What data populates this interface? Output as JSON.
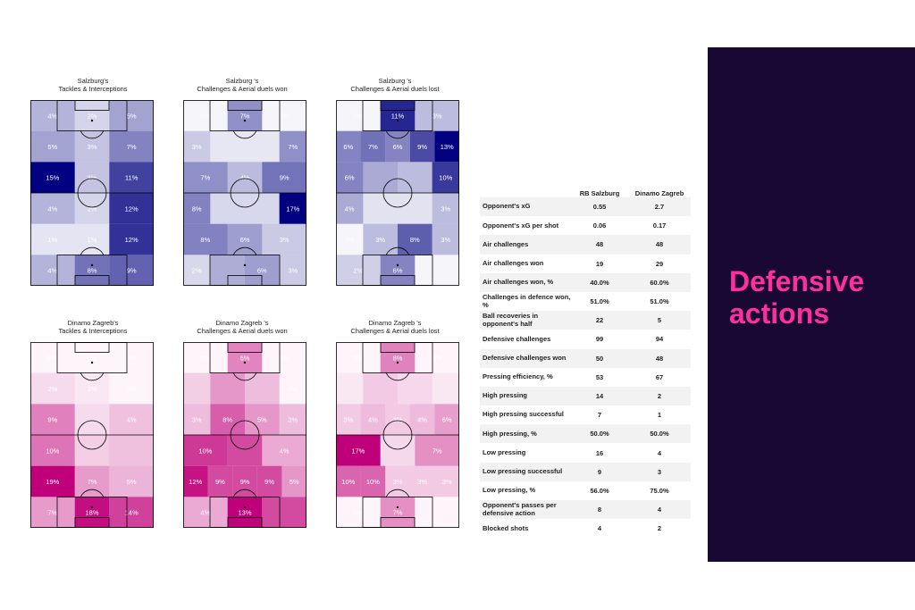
{
  "pitch_maps": [
    {
      "title_line1": "Salzburg's",
      "title_line2": "Tackles & Interceptions",
      "color": "#000080",
      "grid": [
        [
          {
            "v": 4,
            "t": "4%"
          },
          {
            "v": 2,
            "t": "2%"
          },
          {
            "v": 5,
            "t": "5%"
          }
        ],
        [
          {
            "v": 5,
            "t": "5%"
          },
          {
            "v": 3,
            "t": "3%"
          },
          {
            "v": 7,
            "t": "7%"
          }
        ],
        [
          {
            "v": 15,
            "t": "15%"
          },
          {
            "v": 3,
            "t": "3%"
          },
          {
            "v": 11,
            "t": "11%"
          }
        ],
        [
          {
            "v": 4,
            "t": "4%"
          },
          {
            "v": 2,
            "t": "2%"
          },
          {
            "v": 12,
            "t": "12%"
          }
        ],
        [
          {
            "v": 1,
            "t": "1%"
          },
          {
            "v": 1,
            "t": "1%"
          },
          {
            "v": 12,
            "t": "12%"
          }
        ],
        [
          {
            "v": 4,
            "t": "4%"
          },
          {
            "v": 8,
            "t": "8%"
          },
          {
            "v": 9,
            "t": "9%"
          }
        ]
      ]
    },
    {
      "title_line1": "Salzburg 's",
      "title_line2": "Challenges & Aerial duels won",
      "color": "#000080",
      "grid": [
        [
          {
            "v": 0,
            "t": "0%"
          },
          {
            "v": 7,
            "t": "7%"
          },
          {
            "v": 0,
            "t": "0%"
          }
        ],
        [
          {
            "v": 3,
            "t": "3%"
          },
          {
            "v": 1,
            "t": ""
          },
          {
            "v": 1,
            "t": ""
          },
          {
            "v": 7,
            "t": "7%"
          }
        ],
        [
          {
            "v": 7,
            "t": "7%"
          },
          {
            "v": 4,
            "t": "4%"
          },
          {
            "v": 9,
            "t": "9%"
          }
        ],
        [
          {
            "v": 8,
            "t": "8%"
          },
          {
            "v": 2,
            "t": ""
          },
          {
            "v": 2,
            "t": ""
          },
          {
            "v": 17,
            "t": "17%"
          }
        ],
        [
          {
            "v": 8,
            "t": "8%"
          },
          {
            "v": 6,
            "t": "6%"
          },
          {
            "v": 3,
            "t": "3%"
          }
        ],
        [
          {
            "v": 2,
            "t": "2%"
          },
          {
            "v": 5,
            "t": ""
          },
          {
            "v": 6,
            "t": "6%"
          },
          {
            "v": 3,
            "t": "3%"
          }
        ]
      ]
    },
    {
      "title_line1": "Salzburg 's",
      "title_line2": "Challenges & Aerial duels lost",
      "color": "#000080",
      "grid": [
        [
          {
            "v": 0,
            "t": "0%"
          },
          {
            "v": 11,
            "t": "11%"
          },
          {
            "v": 3,
            "t": "3%"
          }
        ],
        [
          {
            "v": 6,
            "t": "6%"
          },
          {
            "v": 7,
            "t": "7%"
          },
          {
            "v": 6,
            "t": "6%"
          },
          {
            "v": 9,
            "t": "9%"
          },
          {
            "v": 13,
            "t": "13%"
          }
        ],
        [
          {
            "v": 6,
            "t": "6%"
          },
          {
            "v": 4,
            "t": ""
          },
          {
            "v": 3,
            "t": ""
          },
          {
            "v": 10,
            "t": "10%"
          }
        ],
        [
          {
            "v": 4,
            "t": "4%"
          },
          {
            "v": 1,
            "t": ""
          },
          {
            "v": 1,
            "t": ""
          },
          {
            "v": 3,
            "t": "3%"
          }
        ],
        [
          {
            "v": 0,
            "t": "0%"
          },
          {
            "v": 3,
            "t": "3%"
          },
          {
            "v": 8,
            "t": "8%"
          },
          {
            "v": 3,
            "t": "3%"
          }
        ],
        [
          {
            "v": 2,
            "t": "2%"
          },
          {
            "v": 6,
            "t": "6%"
          },
          {
            "v": 0,
            "t": ""
          }
        ]
      ]
    },
    {
      "title_line1": "Dinamo Zagreb's",
      "title_line2": "Tackles & Interceptions",
      "color": "#c0007a",
      "grid": [
        [
          {
            "v": 0,
            "t": "0%"
          },
          {
            "v": 0,
            "t": "0%"
          },
          {
            "v": 0,
            "t": "0%"
          }
        ],
        [
          {
            "v": 2,
            "t": "2%"
          },
          {
            "v": 1,
            "t": "1%"
          },
          {
            "v": 0,
            "t": "0%"
          }
        ],
        [
          {
            "v": 9,
            "t": "9%"
          },
          {
            "v": 2,
            "t": ""
          },
          {
            "v": 4,
            "t": "4%"
          }
        ],
        [
          {
            "v": 10,
            "t": "10%"
          },
          {
            "v": 3,
            "t": ""
          },
          {
            "v": 4,
            "t": ""
          }
        ],
        [
          {
            "v": 19,
            "t": "19%"
          },
          {
            "v": 7,
            "t": "7%"
          },
          {
            "v": 5,
            "t": "5%"
          }
        ],
        [
          {
            "v": 7,
            "t": "7%"
          },
          {
            "v": 18,
            "t": "18%"
          },
          {
            "v": 14,
            "t": "14%"
          }
        ]
      ]
    },
    {
      "title_line1": "Dinamo Zagreb 's",
      "title_line2": "Challenges & Aerial duels won",
      "color": "#c0007a",
      "grid": [
        [
          {
            "v": 0,
            "t": "0%"
          },
          {
            "v": 6,
            "t": "6%"
          },
          {
            "v": 0,
            "t": "0%"
          }
        ],
        [
          {
            "v": 2,
            "t": ""
          },
          {
            "v": 5,
            "t": ""
          },
          {
            "v": 3,
            "t": ""
          },
          {
            "v": 0,
            "t": "0%"
          }
        ],
        [
          {
            "v": 3,
            "t": "3%"
          },
          {
            "v": 8,
            "t": "8%"
          },
          {
            "v": 5,
            "t": "5%"
          },
          {
            "v": 3,
            "t": "3%"
          }
        ],
        [
          {
            "v": 10,
            "t": "10%"
          },
          {
            "v": 9,
            "t": ""
          },
          {
            "v": 4,
            "t": "4%"
          }
        ],
        [
          {
            "v": 12,
            "t": "12%"
          },
          {
            "v": 9,
            "t": "9%"
          },
          {
            "v": 9,
            "t": "9%"
          },
          {
            "v": 9,
            "t": "9%"
          },
          {
            "v": 5,
            "t": "5%"
          }
        ],
        [
          {
            "v": 4,
            "t": "4%"
          },
          {
            "v": 13,
            "t": "13%"
          },
          {
            "v": 9,
            "t": ""
          }
        ]
      ]
    },
    {
      "title_line1": "Dinamo Zagreb 's",
      "title_line2": "Challenges & Aerial duels lost",
      "color": "#c0007a",
      "grid": [
        [
          {
            "v": 0,
            "t": "0%"
          },
          {
            "v": 8,
            "t": "8%"
          },
          {
            "v": 0,
            "t": "0%"
          }
        ],
        [
          {
            "v": 1,
            "t": ""
          },
          {
            "v": 3,
            "t": ""
          },
          {
            "v": 2,
            "t": ""
          },
          {
            "v": 1,
            "t": ""
          }
        ],
        [
          {
            "v": 3,
            "t": "3%"
          },
          {
            "v": 4,
            "t": "4%"
          },
          {
            "v": 3,
            "t": "3%"
          },
          {
            "v": 4,
            "t": "4%"
          },
          {
            "v": 6,
            "t": "6%"
          }
        ],
        [
          {
            "v": 17,
            "t": "17%"
          },
          {
            "v": 2,
            "t": ""
          },
          {
            "v": 7,
            "t": "7%"
          }
        ],
        [
          {
            "v": 10,
            "t": "10%"
          },
          {
            "v": 10,
            "t": "10%"
          },
          {
            "v": 3,
            "t": "3%"
          },
          {
            "v": 3,
            "t": "3%"
          },
          {
            "v": 3,
            "t": "3%"
          }
        ],
        [
          {
            "v": 0,
            "t": "0%"
          },
          {
            "v": 7,
            "t": "7%"
          },
          {
            "v": 0,
            "t": ""
          }
        ]
      ]
    }
  ],
  "stats_table": {
    "col_team1": "RB Salzburg",
    "col_team2": "Dinamo Zagreb",
    "rows": [
      {
        "label": "Opponent's xG",
        "a": "0.55",
        "b": "2.7"
      },
      {
        "label": "Opponent's xG per shot",
        "a": "0.06",
        "b": "0.17"
      },
      {
        "label": "Air challenges",
        "a": "48",
        "b": "48"
      },
      {
        "label": "Air challenges won",
        "a": "19",
        "b": "29"
      },
      {
        "label": "Air challenges won, %",
        "a": "40.0%",
        "b": "60.0%"
      },
      {
        "label": "Challenges in defence won, %",
        "a": "51.0%",
        "b": "51.0%"
      },
      {
        "label": "Ball recoveries in opponent's half",
        "a": "22",
        "b": "5"
      },
      {
        "label": "Defensive challenges",
        "a": "99",
        "b": "94"
      },
      {
        "label": "Defensive challenges won",
        "a": "50",
        "b": "48"
      },
      {
        "label": "Pressing efficiency, %",
        "a": "53",
        "b": "67"
      },
      {
        "label": "High pressing",
        "a": "14",
        "b": "2"
      },
      {
        "label": "High pressing successful",
        "a": "7",
        "b": "1"
      },
      {
        "label": "High pressing, %",
        "a": "50.0%",
        "b": "50.0%"
      },
      {
        "label": "Low pressing",
        "a": "16",
        "b": "4"
      },
      {
        "label": "Low pressing successful",
        "a": "9",
        "b": "3"
      },
      {
        "label": "Low pressing, %",
        "a": "56.0%",
        "b": "75.0%"
      },
      {
        "label": "Opponent's passes per defensive action",
        "a": "8",
        "b": "4"
      },
      {
        "label": "Blocked shots",
        "a": "4",
        "b": "2"
      }
    ]
  },
  "panel": {
    "title_line1": "Defensive",
    "title_line2": "actions",
    "bg_color": "#190833",
    "title_color": "#ff2fa0"
  }
}
